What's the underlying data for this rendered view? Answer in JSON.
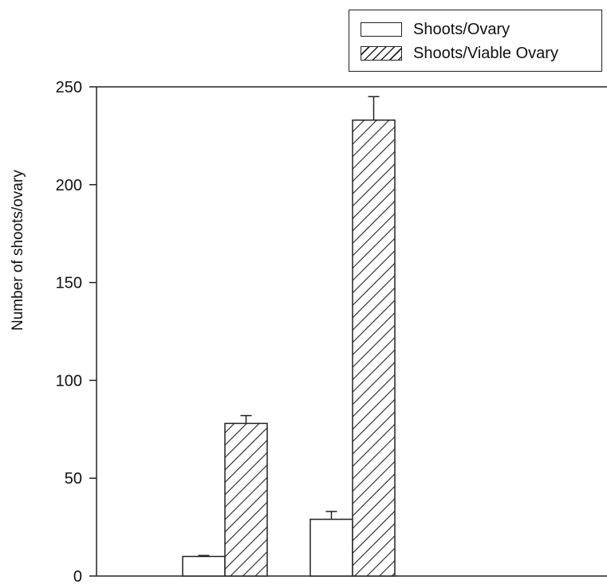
{
  "chart_data": {
    "type": "bar",
    "title": "",
    "xlabel": "",
    "ylabel": "Number of shoots/ovary",
    "categories": [
      "",
      ""
    ],
    "series": [
      {
        "name": "Shoots/Ovary",
        "values": [
          10,
          29
        ],
        "errors": [
          0.5,
          4
        ],
        "fill": "white"
      },
      {
        "name": "Shoots/Viable Ovary",
        "values": [
          78,
          233
        ],
        "errors": [
          4,
          12
        ],
        "fill": "hatched"
      }
    ],
    "ylim": [
      0,
      250
    ],
    "yticks": [
      0,
      50,
      100,
      150,
      200,
      250
    ],
    "grid": false,
    "legend_position": "top-right"
  }
}
